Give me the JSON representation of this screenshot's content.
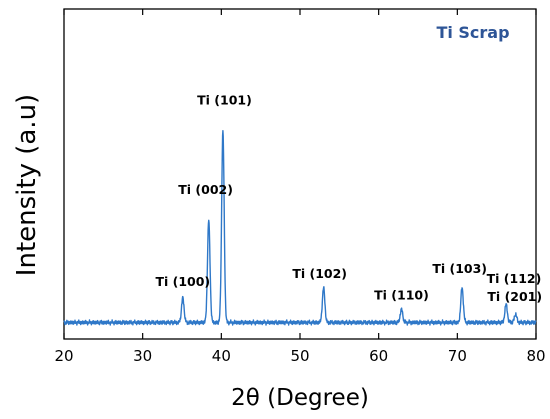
{
  "chart_data": {
    "type": "line",
    "title": "",
    "xlabel": "2θ (Degree)",
    "ylabel": "Intensity (a.u)",
    "xlim": [
      20,
      80
    ],
    "ylim": [
      0,
      100
    ],
    "x_ticks": [
      20,
      30,
      40,
      50,
      60,
      70,
      80
    ],
    "x_tick_labels": [
      "20",
      "30",
      "40",
      "50",
      "60",
      "70",
      "80"
    ],
    "y_tick_labels": [],
    "grid": false,
    "legend": {
      "label": "Ti Scrap",
      "placement": "top-right",
      "color": "#2e5597"
    },
    "series": [
      {
        "name": "Ti Scrap",
        "color": "#2f78c8",
        "baseline": 5,
        "peaks": [
          {
            "x": 35.1,
            "height": 7.5
          },
          {
            "x": 38.4,
            "height": 31
          },
          {
            "x": 40.2,
            "height": 58
          },
          {
            "x": 53.0,
            "height": 10.5
          },
          {
            "x": 62.9,
            "height": 4
          },
          {
            "x": 70.6,
            "height": 10.5
          },
          {
            "x": 76.2,
            "height": 5.5
          },
          {
            "x": 77.4,
            "height": 2.5
          }
        ]
      }
    ],
    "annotations": [
      {
        "text": "Ti (100)",
        "x": 35.1,
        "y": 16
      },
      {
        "text": "Ti (002)",
        "x": 38.0,
        "y": 44
      },
      {
        "text": "Ti (101)",
        "x": 40.4,
        "y": 71
      },
      {
        "text": "Ti (102)",
        "x": 52.5,
        "y": 18.5
      },
      {
        "text": "Ti (110)",
        "x": 62.9,
        "y": 12
      },
      {
        "text": "Ti (103)",
        "x": 70.3,
        "y": 20
      },
      {
        "text": "Ti (112)",
        "x": 77.2,
        "y": 17
      },
      {
        "text": "Ti (201)",
        "x": 77.3,
        "y": 11.5
      }
    ]
  }
}
